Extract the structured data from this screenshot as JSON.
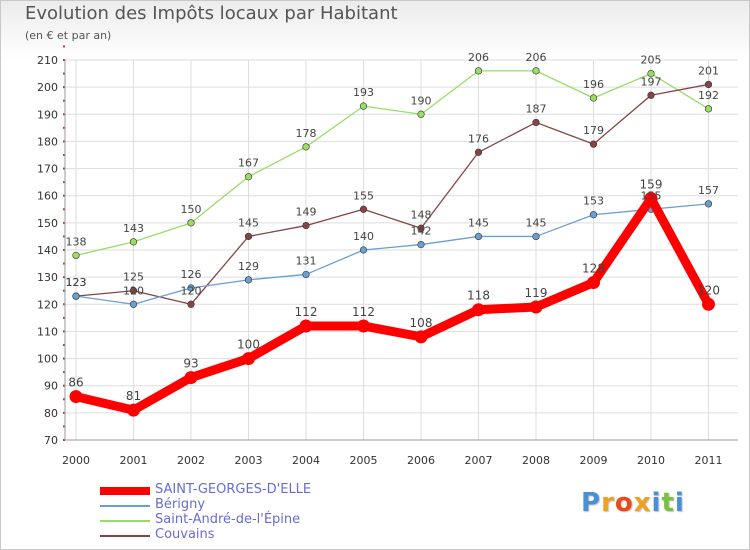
{
  "header": {
    "title": "Evolution des Impôts locaux par Habitant",
    "subtitle": "(en € et par an)"
  },
  "brand": {
    "logo_text": "Proxiti",
    "colors": [
      "#4a90d9",
      "#f0a020",
      "#e84a1a",
      "#f0a020",
      "#4a90d9",
      "#7ac040",
      "#4a90d9"
    ]
  },
  "chart_data": {
    "type": "line",
    "title": "Evolution des Impôts locaux par Habitant",
    "subtitle": "(en € et par an)",
    "xlabel": "",
    "ylabel": "",
    "x": [
      "2000",
      "2001",
      "2002",
      "2003",
      "2004",
      "2005",
      "2006",
      "2007",
      "2008",
      "2009",
      "2010",
      "2011"
    ],
    "ylim": [
      70,
      210
    ],
    "yticks": [
      70,
      80,
      90,
      100,
      110,
      120,
      130,
      140,
      150,
      160,
      170,
      180,
      190,
      200,
      210
    ],
    "grid": true,
    "legend_position": "bottom-left",
    "series": [
      {
        "name": "SAINT-GEORGES-D'ELLE",
        "color": "#ff0000",
        "values": [
          86,
          81,
          93,
          100,
          112,
          112,
          108,
          118,
          119,
          128,
          159,
          120
        ],
        "labels": [
          "86",
          "81",
          "93",
          "100",
          "112",
          "112",
          "108",
          "118",
          "119",
          "128",
          "159",
          "120"
        ]
      },
      {
        "name": "Bérigny",
        "color": "#6a9fd4",
        "values": [
          123,
          120,
          126,
          129,
          131,
          140,
          142,
          145,
          145,
          153,
          155,
          157
        ],
        "labels": [
          "123",
          "120",
          "126",
          "129",
          "131",
          "140",
          "142",
          "145",
          "145",
          "153",
          "155",
          "157"
        ]
      },
      {
        "name": "Saint-André-de-l'Épine",
        "color": "#99dd66",
        "values": [
          138,
          143,
          150,
          167,
          178,
          193,
          190,
          206,
          206,
          196,
          205,
          192
        ],
        "labels": [
          "138",
          "143",
          "150",
          "167",
          "178",
          "193",
          "190",
          "206",
          "206",
          "196",
          "205",
          "192"
        ]
      },
      {
        "name": "Couvains",
        "color": "#884444",
        "values": [
          123,
          125,
          120,
          145,
          149,
          155,
          148,
          176,
          187,
          179,
          197,
          201
        ],
        "labels": [
          "123",
          "125",
          "120",
          "145",
          "149",
          "155",
          "148",
          "176",
          "187",
          "179",
          "197",
          "201"
        ]
      }
    ]
  }
}
